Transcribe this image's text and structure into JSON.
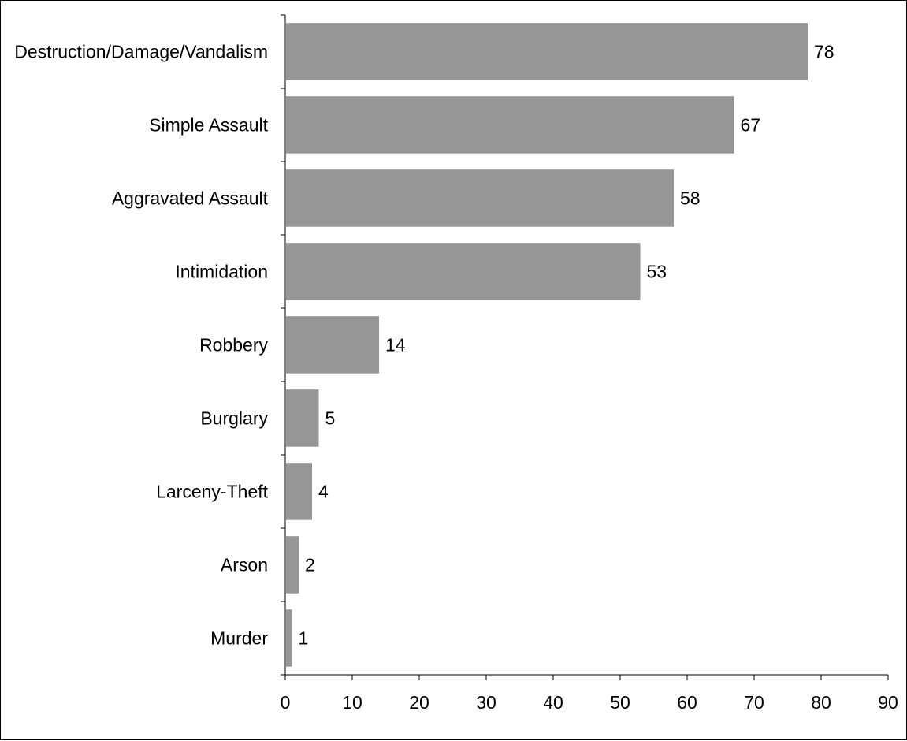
{
  "colors": {
    "bar": "#969696",
    "axis": "#000000",
    "text": "#000000",
    "background": "#ffffff"
  },
  "chart_data": {
    "type": "bar",
    "orientation": "horizontal",
    "title": "",
    "xlabel": "",
    "ylabel": "",
    "categories": [
      "Destruction/Damage/Vandalism",
      "Simple Assault",
      "Aggravated Assault",
      "Intimidation",
      "Robbery",
      "Burglary",
      "Larceny-Theft",
      "Arson",
      "Murder"
    ],
    "values": [
      78,
      67,
      58,
      53,
      14,
      5,
      4,
      2,
      1
    ],
    "xlim": [
      0,
      90
    ],
    "xticks": [
      0,
      10,
      20,
      30,
      40,
      50,
      60,
      70,
      80,
      90
    ],
    "data_labels": true,
    "grid": false,
    "legend": "none"
  }
}
